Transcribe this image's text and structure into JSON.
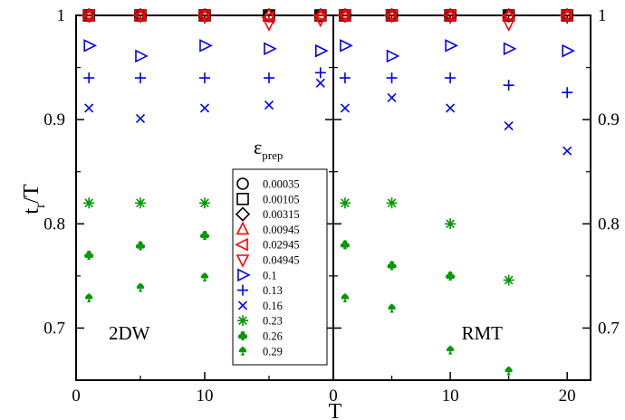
{
  "chart_data": {
    "type": "scatter",
    "xlabel": "T",
    "ylabel_main": "t",
    "ylabel_sub": "r",
    "ylabel_tail": "/T",
    "ylim": [
      0.65,
      1.0
    ],
    "yticks": [
      "0.7",
      "0.8",
      "0.9",
      "1"
    ],
    "legend": {
      "title_main": "ε",
      "title_sub": "prep",
      "position": "center-left"
    },
    "series_styles": [
      {
        "name": "0.00035",
        "marker": "circle",
        "color": "#000000"
      },
      {
        "name": "0.00105",
        "marker": "square",
        "color": "#000000"
      },
      {
        "name": "0.00315",
        "marker": "diamond",
        "color": "#000000"
      },
      {
        "name": "0.00945",
        "marker": "triangle-up",
        "color": "#ff0000"
      },
      {
        "name": "0.02945",
        "marker": "triangle-left",
        "color": "#ff0000"
      },
      {
        "name": "0.04945",
        "marker": "triangle-down",
        "color": "#ff0000"
      },
      {
        "name": "0.1",
        "marker": "triangle-right",
        "color": "#0000ff"
      },
      {
        "name": "0.13",
        "marker": "plus",
        "color": "#0000ff"
      },
      {
        "name": "0.16",
        "marker": "x",
        "color": "#0000ff"
      },
      {
        "name": "0.23",
        "marker": "asterisk",
        "color": "#009900"
      },
      {
        "name": "0.26",
        "marker": "club",
        "color": "#009900"
      },
      {
        "name": "0.29",
        "marker": "spade",
        "color": "#009900"
      }
    ],
    "panels": [
      {
        "label": "2DW",
        "xlim": [
          0,
          20
        ],
        "xticks": [
          "0",
          "10"
        ],
        "xtick_values": [
          0,
          10
        ],
        "series": [
          {
            "x": [
              1,
              5,
              10,
              15,
              19
            ],
            "y": [
              1,
              1,
              1,
              1,
              1
            ]
          },
          {
            "x": [
              1,
              5,
              10,
              15,
              19
            ],
            "y": [
              1,
              1,
              1,
              1,
              1
            ]
          },
          {
            "x": [
              1,
              5,
              10,
              15,
              19
            ],
            "y": [
              1,
              1,
              1,
              1,
              1
            ]
          },
          {
            "x": [
              1,
              5,
              10,
              15,
              19
            ],
            "y": [
              1,
              1,
              1,
              1,
              1
            ]
          },
          {
            "x": [
              1,
              5,
              10,
              15,
              19
            ],
            "y": [
              1,
              1,
              1,
              0.998,
              1
            ]
          },
          {
            "x": [
              1,
              5,
              10,
              15,
              19
            ],
            "y": [
              1,
              1,
              1,
              0.992,
              0.996
            ]
          },
          {
            "x": [
              1,
              5,
              10,
              15,
              19
            ],
            "y": [
              0.971,
              0.961,
              0.971,
              0.968,
              0.966
            ]
          },
          {
            "x": [
              1,
              5,
              10,
              15,
              19
            ],
            "y": [
              0.94,
              0.94,
              0.94,
              0.94,
              0.945
            ]
          },
          {
            "x": [
              1,
              5,
              10,
              15,
              19
            ],
            "y": [
              0.911,
              0.901,
              0.911,
              0.914,
              0.935
            ]
          },
          {
            "x": [
              1,
              5,
              10,
              15
            ],
            "y": [
              0.82,
              0.82,
              0.82,
              0.796
            ]
          },
          {
            "x": [
              1,
              5,
              10
            ],
            "y": [
              0.77,
              0.779,
              0.789
            ]
          },
          {
            "x": [
              1,
              5,
              10
            ],
            "y": [
              0.729,
              0.739,
              0.749
            ]
          }
        ]
      },
      {
        "label": "RMT",
        "xlim": [
          0,
          22
        ],
        "xticks": [
          "0",
          "10",
          "20"
        ],
        "xtick_values": [
          0,
          10,
          20
        ],
        "series": [
          {
            "x": [
              1,
              5,
              10,
              15,
              20
            ],
            "y": [
              1,
              1,
              1,
              1,
              1
            ]
          },
          {
            "x": [
              1,
              5,
              10,
              15,
              20
            ],
            "y": [
              1,
              1,
              1,
              1,
              1
            ]
          },
          {
            "x": [
              1,
              5,
              10,
              15,
              20
            ],
            "y": [
              1,
              1,
              1,
              1,
              1
            ]
          },
          {
            "x": [
              1,
              5,
              10,
              15,
              20
            ],
            "y": [
              1,
              1,
              1,
              1,
              1
            ]
          },
          {
            "x": [
              1,
              5,
              10,
              15,
              20
            ],
            "y": [
              1,
              1,
              1,
              1,
              1
            ]
          },
          {
            "x": [
              1,
              5,
              10,
              15,
              20
            ],
            "y": [
              1,
              1,
              1,
              0.992,
              1
            ]
          },
          {
            "x": [
              1,
              5,
              10,
              15,
              20
            ],
            "y": [
              0.971,
              0.961,
              0.971,
              0.968,
              0.966
            ]
          },
          {
            "x": [
              1,
              5,
              10,
              15,
              20
            ],
            "y": [
              0.94,
              0.94,
              0.94,
              0.933,
              0.926
            ]
          },
          {
            "x": [
              1,
              5,
              10,
              15,
              20
            ],
            "y": [
              0.911,
              0.921,
              0.911,
              0.894,
              0.87
            ]
          },
          {
            "x": [
              1,
              5,
              10,
              15
            ],
            "y": [
              0.82,
              0.82,
              0.8,
              0.746
            ]
          },
          {
            "x": [
              1,
              5,
              10
            ],
            "y": [
              0.78,
              0.76,
              0.75
            ]
          },
          {
            "x": [
              1,
              5,
              10,
              15
            ],
            "y": [
              0.729,
              0.719,
              0.679,
              0.659
            ]
          }
        ]
      }
    ]
  }
}
